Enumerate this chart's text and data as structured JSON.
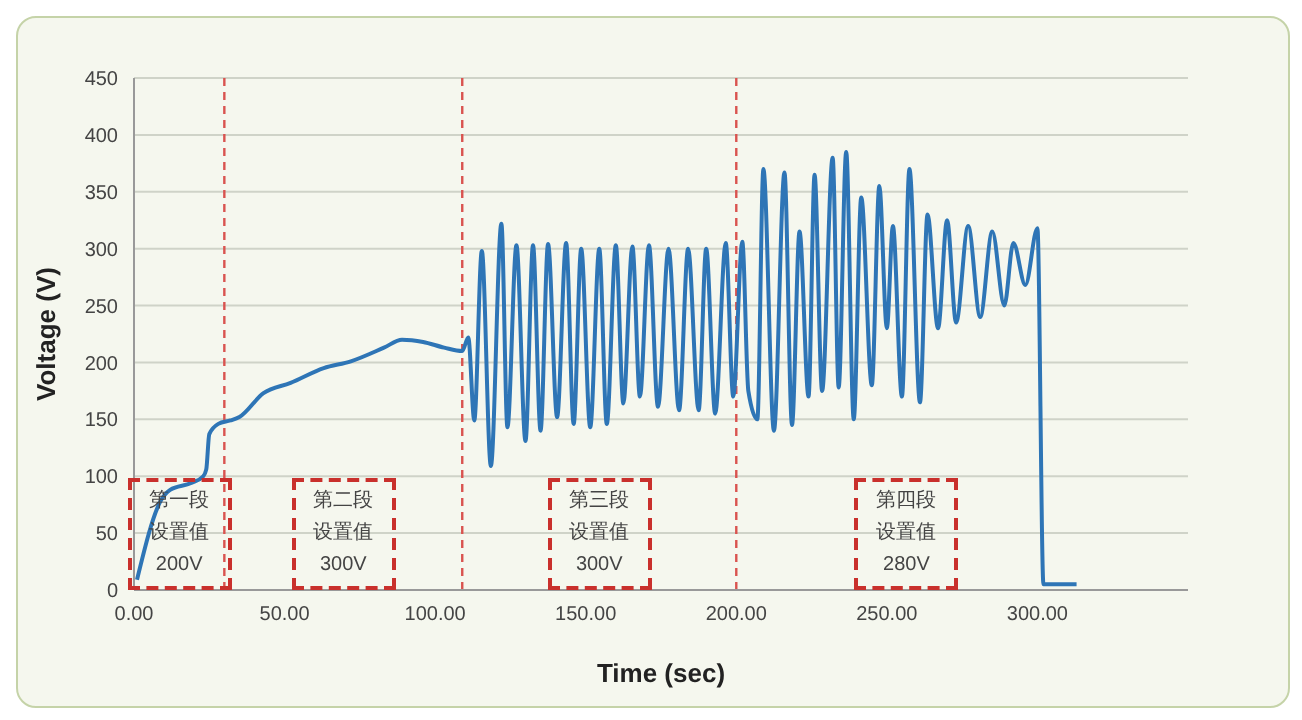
{
  "chart_data": {
    "type": "line",
    "xlabel": "Time (sec)",
    "ylabel": "Voltage (V)",
    "x": [
      1,
      9,
      12,
      19,
      23,
      24,
      25,
      28,
      32,
      35,
      43,
      52,
      63,
      72,
      83,
      89,
      96,
      103,
      109,
      111,
      113,
      115.5,
      118.5,
      122,
      124,
      127,
      130,
      132.5,
      135,
      137.5,
      140.5,
      143.5,
      146,
      148.5,
      151.5,
      154.5,
      157,
      160,
      162.5,
      165.5,
      168,
      171,
      174,
      177.5,
      181,
      184,
      187.5,
      190,
      193,
      196.5,
      199,
      202,
      204,
      207,
      209,
      212.5,
      216,
      218.5,
      221,
      224,
      226,
      228.5,
      232,
      234,
      236.5,
      239,
      241.5,
      245,
      247.5,
      250,
      252,
      255,
      257.5,
      261,
      263.5,
      267,
      270,
      273,
      277,
      281,
      285,
      289,
      292,
      296,
      300,
      302,
      313
    ],
    "series": [
      {
        "color": "#2e75b6",
        "values": [
          9,
          79,
          88,
          94,
          100,
          106,
          137,
          146,
          149,
          152,
          173,
          182,
          195,
          201,
          213,
          220,
          218,
          213,
          210,
          222,
          149,
          298,
          109,
          322,
          143,
          303,
          131,
          303,
          140,
          304,
          152,
          305,
          146,
          300,
          143,
          300,
          146,
          303,
          164,
          302,
          170,
          303,
          161,
          300,
          158,
          300,
          158,
          300,
          155,
          305,
          170,
          306,
          175,
          150,
          370,
          140,
          367,
          145,
          315,
          170,
          365,
          175,
          380,
          178,
          385,
          150,
          345,
          180,
          355,
          230,
          320,
          170,
          370,
          165,
          330,
          230,
          325,
          235,
          320,
          240,
          315,
          250,
          305,
          268,
          318,
          5,
          5
        ]
      }
    ],
    "xlim": [
      0,
      350
    ],
    "xticks": [
      {
        "value": 0,
        "label": "0.00"
      },
      {
        "value": 50,
        "label": "50.00"
      },
      {
        "value": 100,
        "label": "100.00"
      },
      {
        "value": 150,
        "label": "150.00"
      },
      {
        "value": 200,
        "label": "200.00"
      },
      {
        "value": 250,
        "label": "250.00"
      },
      {
        "value": 300,
        "label": "300.00"
      }
    ],
    "ylim": [
      0,
      450
    ],
    "yticks": [
      0,
      50,
      100,
      150,
      200,
      250,
      300,
      350,
      400,
      450
    ],
    "grid": "y",
    "ref_lines": [
      {
        "axis": "x",
        "value": 30,
        "color": "#d9534f",
        "line_style": "dashed"
      },
      {
        "axis": "x",
        "value": 109,
        "color": "#d9534f",
        "line_style": "dashed"
      },
      {
        "axis": "x",
        "value": 200,
        "color": "#d9534f",
        "line_style": "dashed"
      }
    ],
    "annotations": [
      "第一段设置值200V",
      "第二段设置值300V",
      "第三段设置值300V",
      "第四段设置值280V"
    ]
  }
}
